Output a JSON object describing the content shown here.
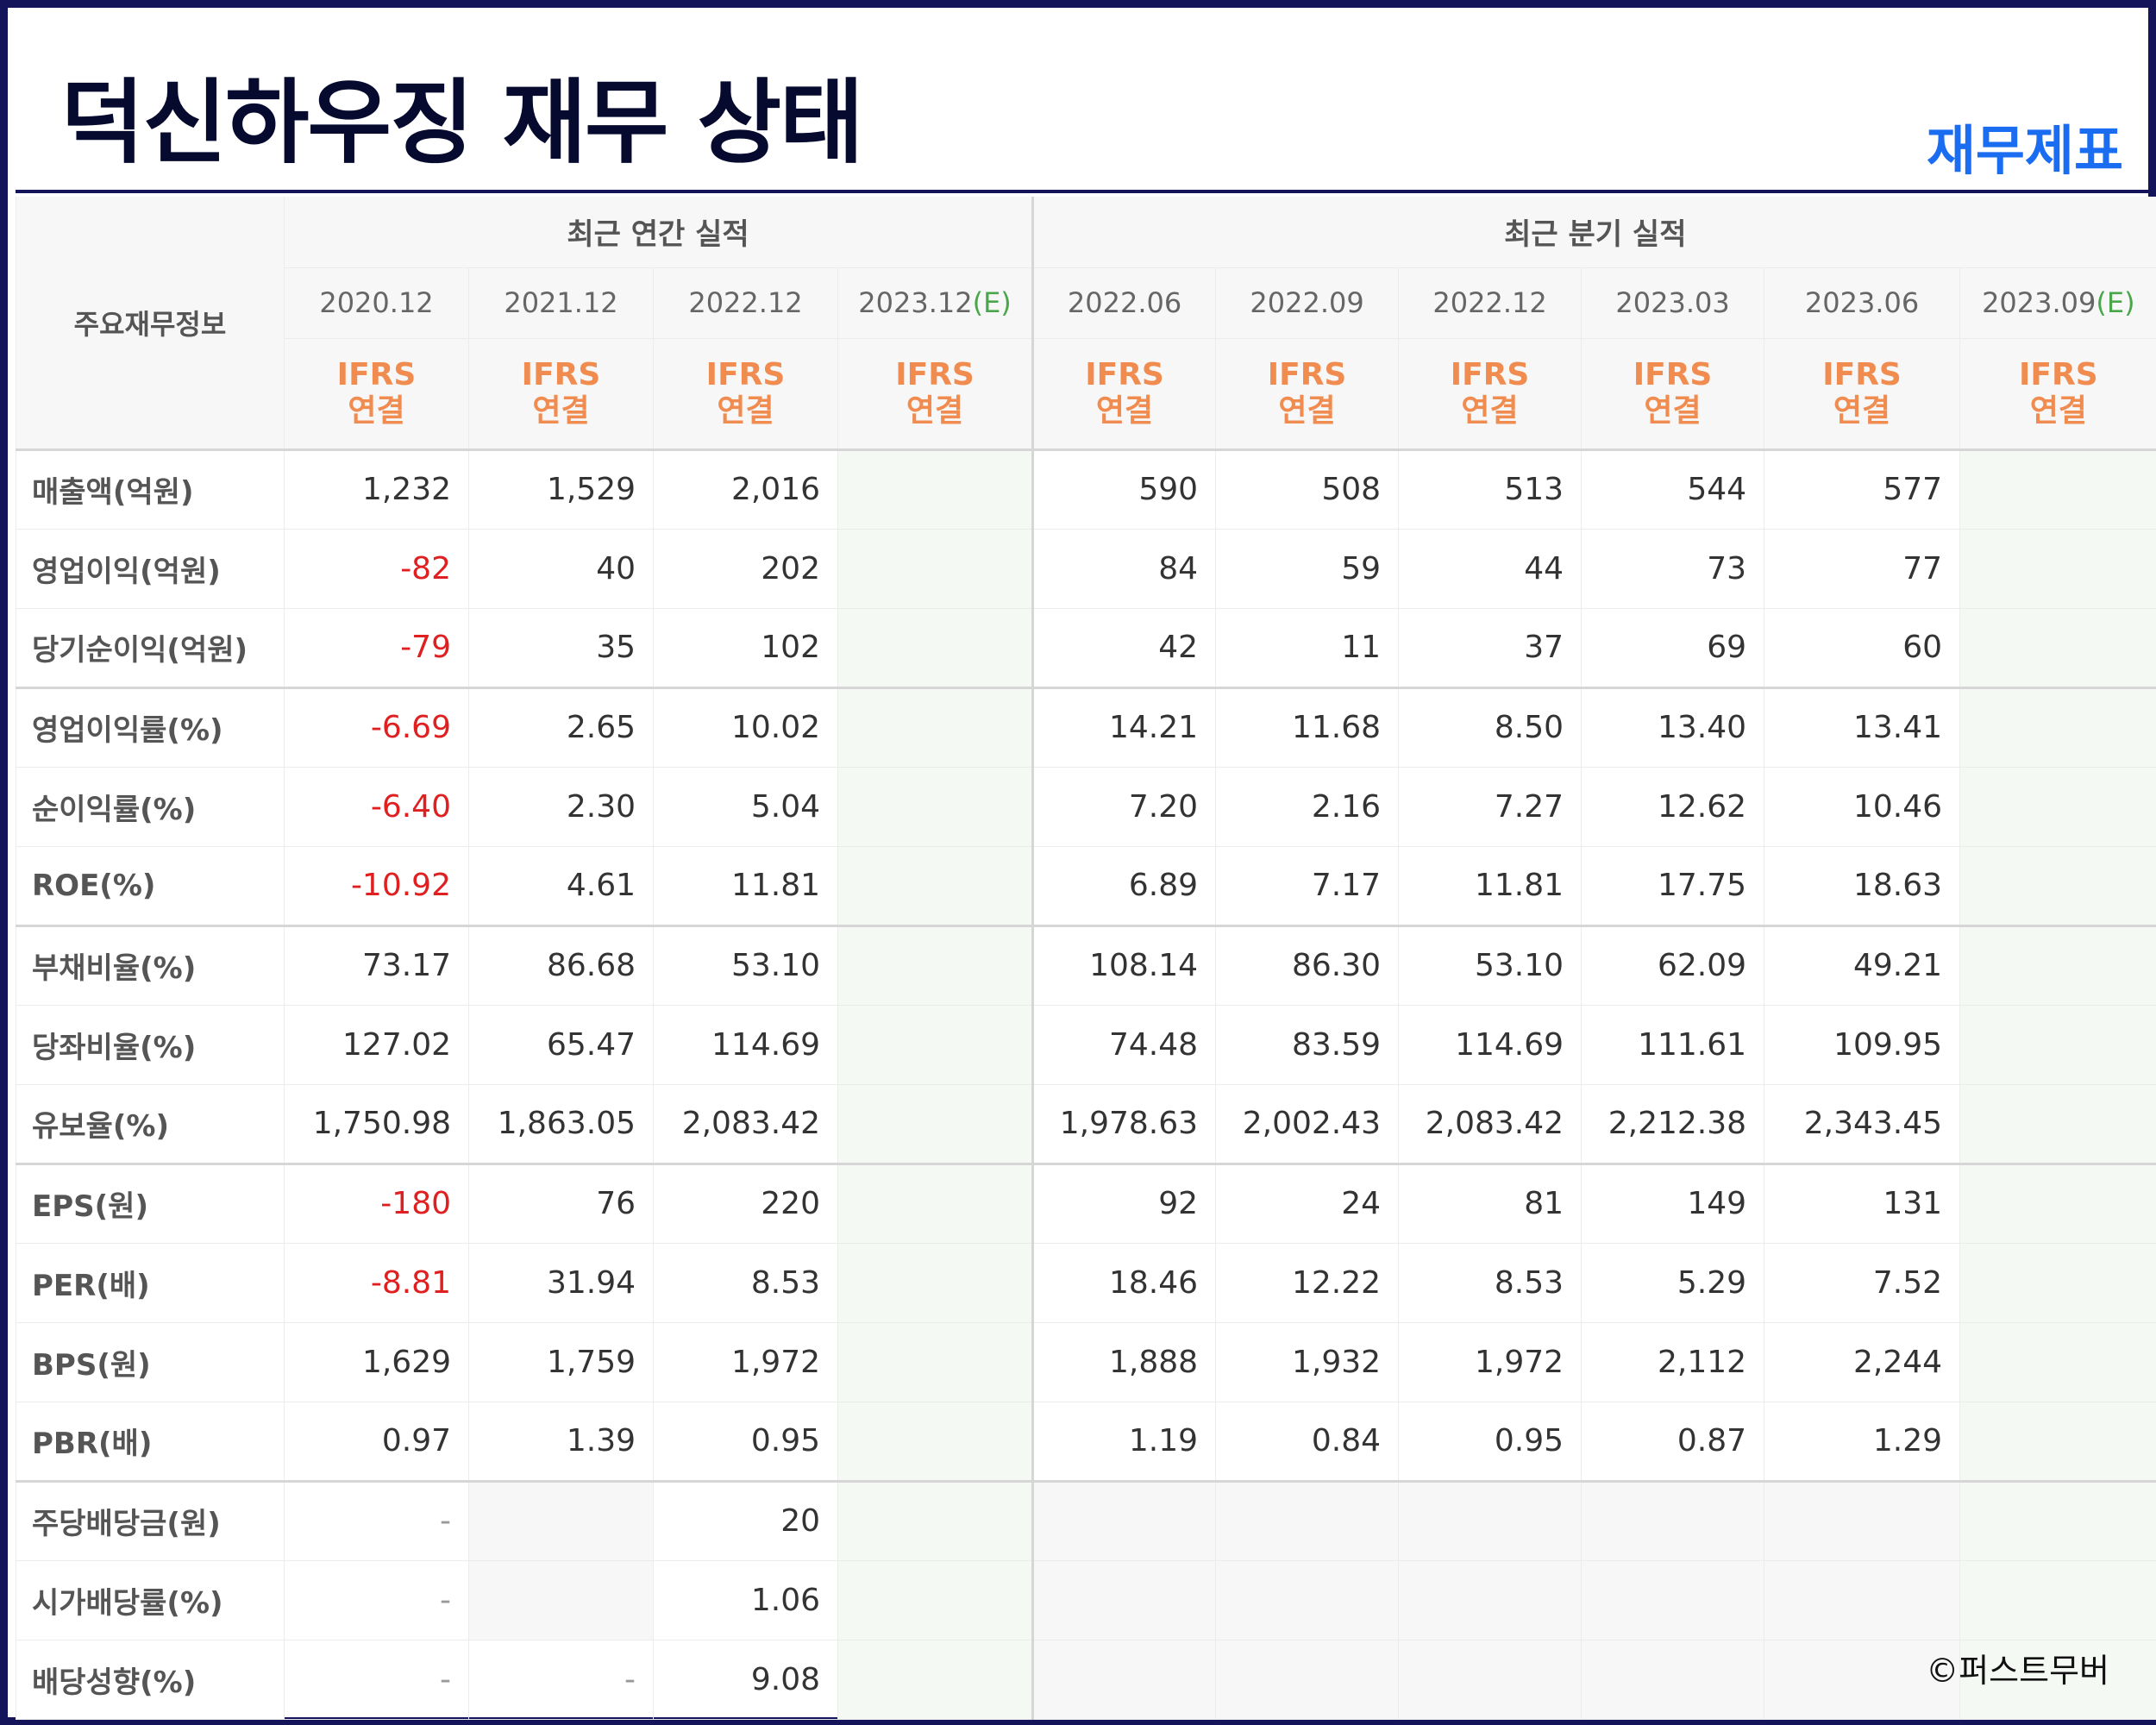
{
  "header": {
    "title": "덕신하우징 재무 상태",
    "subtitle": "재무제표"
  },
  "table": {
    "row_header": "주요재무정보",
    "groups": [
      {
        "label": "최근 연간 실적",
        "span": 4
      },
      {
        "label": "최근 분기 실적",
        "span": 6
      }
    ],
    "periods": [
      {
        "label": "2020.12",
        "estimate": ""
      },
      {
        "label": "2021.12",
        "estimate": ""
      },
      {
        "label": "2022.12",
        "estimate": ""
      },
      {
        "label": "2023.12",
        "estimate": "(E)"
      },
      {
        "label": "2022.06",
        "estimate": ""
      },
      {
        "label": "2022.09",
        "estimate": ""
      },
      {
        "label": "2022.12",
        "estimate": ""
      },
      {
        "label": "2023.03",
        "estimate": ""
      },
      {
        "label": "2023.06",
        "estimate": ""
      },
      {
        "label": "2023.09",
        "estimate": "(E)"
      }
    ],
    "standard": {
      "line1": "IFRS",
      "line2": "연결"
    },
    "rows": [
      {
        "label": "매출액(억원)",
        "values": [
          "1,232",
          "1,529",
          "2,016",
          "",
          "590",
          "508",
          "513",
          "544",
          "577",
          ""
        ]
      },
      {
        "label": "영업이익(억원)",
        "values": [
          "-82",
          "40",
          "202",
          "",
          "84",
          "59",
          "44",
          "73",
          "77",
          ""
        ]
      },
      {
        "label": "당기순이익(억원)",
        "values": [
          "-79",
          "35",
          "102",
          "",
          "42",
          "11",
          "37",
          "69",
          "60",
          ""
        ]
      },
      {
        "label": "영업이익률(%)",
        "values": [
          "-6.69",
          "2.65",
          "10.02",
          "",
          "14.21",
          "11.68",
          "8.50",
          "13.40",
          "13.41",
          ""
        ]
      },
      {
        "label": "순이익률(%)",
        "values": [
          "-6.40",
          "2.30",
          "5.04",
          "",
          "7.20",
          "2.16",
          "7.27",
          "12.62",
          "10.46",
          ""
        ]
      },
      {
        "label": "ROE(%)",
        "values": [
          "-10.92",
          "4.61",
          "11.81",
          "",
          "6.89",
          "7.17",
          "11.81",
          "17.75",
          "18.63",
          ""
        ]
      },
      {
        "label": "부채비율(%)",
        "values": [
          "73.17",
          "86.68",
          "53.10",
          "",
          "108.14",
          "86.30",
          "53.10",
          "62.09",
          "49.21",
          ""
        ]
      },
      {
        "label": "당좌비율(%)",
        "values": [
          "127.02",
          "65.47",
          "114.69",
          "",
          "74.48",
          "83.59",
          "114.69",
          "111.61",
          "109.95",
          ""
        ]
      },
      {
        "label": "유보율(%)",
        "values": [
          "1,750.98",
          "1,863.05",
          "2,083.42",
          "",
          "1,978.63",
          "2,002.43",
          "2,083.42",
          "2,212.38",
          "2,343.45",
          ""
        ]
      },
      {
        "label": "EPS(원)",
        "values": [
          "-180",
          "76",
          "220",
          "",
          "92",
          "24",
          "81",
          "149",
          "131",
          ""
        ]
      },
      {
        "label": "PER(배)",
        "values": [
          "-8.81",
          "31.94",
          "8.53",
          "",
          "18.46",
          "12.22",
          "8.53",
          "5.29",
          "7.52",
          ""
        ]
      },
      {
        "label": "BPS(원)",
        "values": [
          "1,629",
          "1,759",
          "1,972",
          "",
          "1,888",
          "1,932",
          "1,972",
          "2,112",
          "2,244",
          ""
        ]
      },
      {
        "label": "PBR(배)",
        "values": [
          "0.97",
          "1.39",
          "0.95",
          "",
          "1.19",
          "0.84",
          "0.95",
          "0.87",
          "1.29",
          ""
        ]
      },
      {
        "label": "주당배당금(원)",
        "values": [
          "-",
          "",
          "20",
          "",
          "",
          "",
          "",
          "",
          "",
          ""
        ]
      },
      {
        "label": "시가배당률(%)",
        "values": [
          "-",
          "",
          "1.06",
          "",
          "",
          "",
          "",
          "",
          "",
          ""
        ]
      },
      {
        "label": "배당성향(%)",
        "values": [
          "-",
          "-",
          "9.08",
          "",
          "",
          "",
          "",
          "",
          "",
          ""
        ]
      }
    ]
  },
  "colors": {
    "frame": "#14145a",
    "title": "#050a2e",
    "subtitle": "#1a6cf0",
    "negative": "#e02020",
    "ifrs": "#f08c50",
    "estimate": "#4aa64a"
  },
  "credit": "©퍼스트무버"
}
